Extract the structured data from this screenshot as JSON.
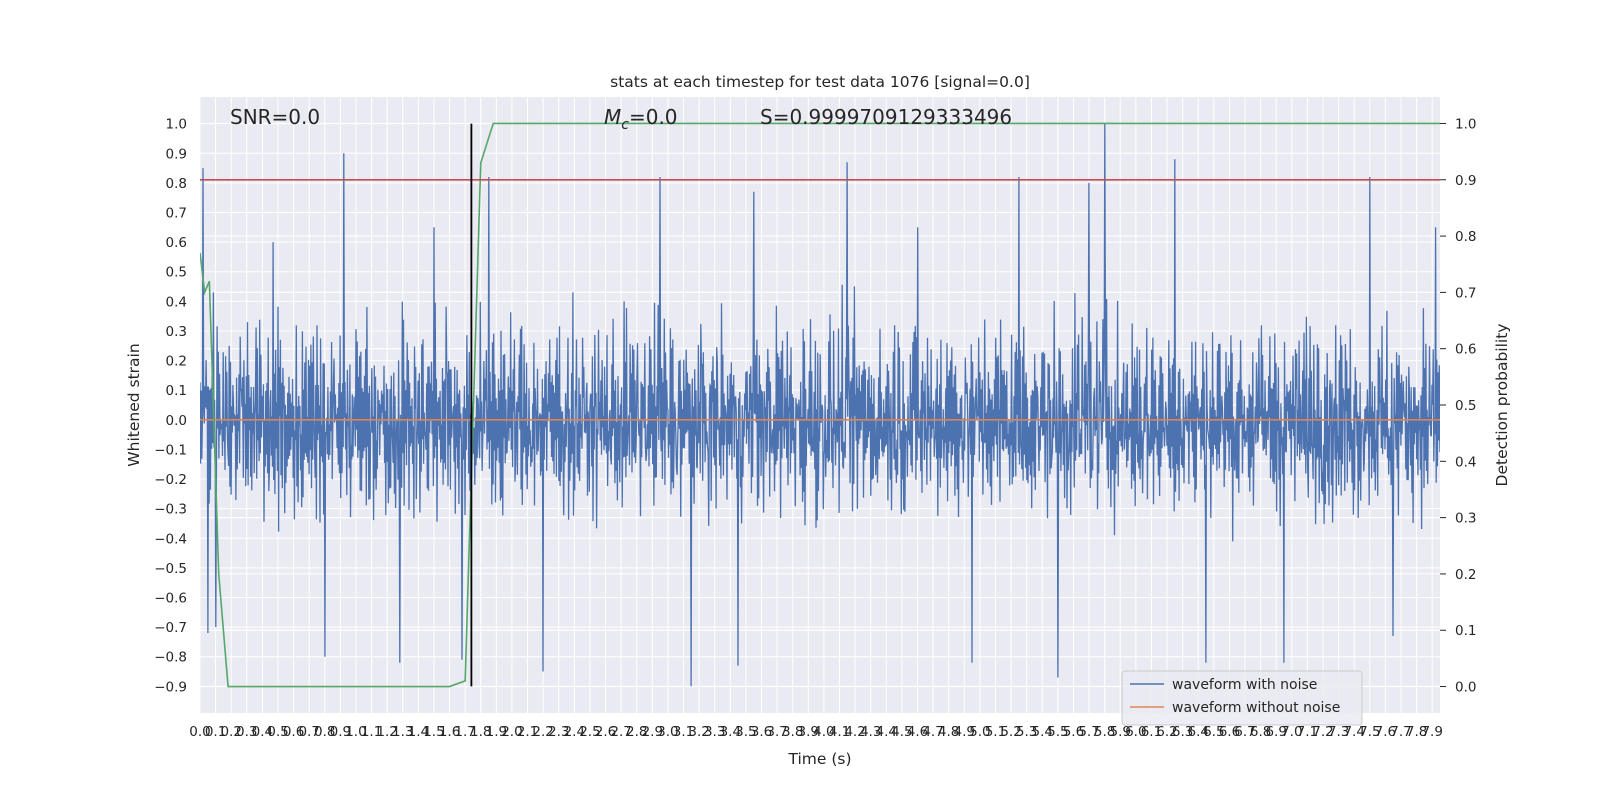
{
  "chart_data": {
    "type": "line",
    "title": "stats at each timestep for test data 1076 [signal=0.0]",
    "xlabel": "Time (s)",
    "ylabel": "Whitened strain",
    "y2label": "Detection probability",
    "xlim": [
      0.0,
      7.95
    ],
    "ylim": [
      -0.99,
      1.09
    ],
    "y2lim": [
      -0.047,
      1.047
    ],
    "x_ticks": [
      0.0,
      0.1,
      0.2,
      0.3,
      0.4,
      0.5,
      0.6,
      0.7,
      0.8,
      0.9,
      1.0,
      1.1,
      1.2,
      1.3,
      1.4,
      1.5,
      1.6,
      1.7,
      1.8,
      1.9,
      2.0,
      2.1,
      2.2,
      2.3,
      2.4,
      2.5,
      2.6,
      2.7,
      2.8,
      2.9,
      3.0,
      3.1,
      3.2,
      3.3,
      3.4,
      3.5,
      3.6,
      3.7,
      3.8,
      3.9,
      4.0,
      4.1,
      4.2,
      4.3,
      4.4,
      4.5,
      4.6,
      4.7,
      4.8,
      4.9,
      5.0,
      5.1,
      5.2,
      5.3,
      5.4,
      5.5,
      5.6,
      5.7,
      5.8,
      5.9,
      6.0,
      6.1,
      6.2,
      6.3,
      6.4,
      6.5,
      6.6,
      6.7,
      6.8,
      6.9,
      7.0,
      7.1,
      7.2,
      7.3,
      7.4,
      7.5,
      7.6,
      7.7,
      7.8,
      7.9
    ],
    "x_tick_labels": [
      "0.0",
      "0.1",
      "0.2",
      "0.3",
      "0.4",
      "0.5",
      "0.6",
      "0.7",
      "0.8",
      "0.9",
      "1.0",
      "1.1",
      "1.2",
      "1.3",
      "1.4",
      "1.5",
      "1.6",
      "1.7",
      "1.8",
      "1.9",
      "2.0",
      "2.1",
      "2.2",
      "2.3",
      "2.4",
      "2.5",
      "2.6",
      "2.7",
      "2.8",
      "2.9",
      "3.0",
      "3.1",
      "3.2",
      "3.3",
      "3.4",
      "3.5",
      "3.6",
      "3.7",
      "3.8",
      "3.9",
      "4.0",
      "4.1",
      "4.2",
      "4.3",
      "4.4",
      "4.5",
      "4.6",
      "4.7",
      "4.8",
      "4.9",
      "5.0",
      "5.1",
      "5.2",
      "5.3",
      "5.4",
      "5.5",
      "5.6",
      "5.7",
      "5.8",
      "5.9",
      "6.0",
      "6.1",
      "6.2",
      "6.3",
      "6.4",
      "6.5",
      "6.6",
      "6.7",
      "6.8",
      "6.9",
      "7.0",
      "7.1",
      "7.2",
      "7.3",
      "7.4",
      "7.5",
      "7.6",
      "7.7",
      "7.8",
      "7.9"
    ],
    "y_ticks": [
      -0.9,
      -0.8,
      -0.7,
      -0.6,
      -0.5,
      -0.4,
      -0.3,
      -0.2,
      -0.1,
      0.0,
      0.1,
      0.2,
      0.3,
      0.4,
      0.5,
      0.6,
      0.7,
      0.8,
      0.9,
      1.0
    ],
    "y_tick_labels": [
      "−0.9",
      "−0.8",
      "−0.7",
      "−0.6",
      "−0.5",
      "−0.4",
      "−0.3",
      "−0.2",
      "−0.1",
      "0.0",
      "0.1",
      "0.2",
      "0.3",
      "0.4",
      "0.5",
      "0.6",
      "0.7",
      "0.8",
      "0.9",
      "1.0"
    ],
    "y2_ticks": [
      0.0,
      0.1,
      0.2,
      0.3,
      0.4,
      0.5,
      0.6,
      0.7,
      0.8,
      0.9,
      1.0
    ],
    "y2_tick_labels": [
      "0.0",
      "0.1",
      "0.2",
      "0.3",
      "0.4",
      "0.5",
      "0.6",
      "0.7",
      "0.8",
      "0.9",
      "1.0"
    ],
    "grid": true,
    "legend_position": "bottom-right",
    "annotations": {
      "snr": "SNR=0.0",
      "mc_symbol": "M",
      "mc_subscript": "c",
      "mc_value": "=0.0",
      "s": "S=0.9999709129333496"
    },
    "colors": {
      "background": "#eaeaf2",
      "grid": "#ffffff",
      "waveform_with_noise": "#4c72b0",
      "waveform_without_noise": "#dd8452",
      "detection_probability": "#55a868",
      "threshold": "#c44e52",
      "marker": "#000000"
    },
    "series": [
      {
        "name": "waveform with noise",
        "axis": "left",
        "kind": "noise",
        "sample_rate_hz": 256,
        "duration_s": 7.95,
        "envelope": [
          0.45,
          0.38
        ],
        "peaks": [
          {
            "x": 0.02,
            "y": 0.85
          },
          {
            "x": 0.05,
            "y": -0.72
          },
          {
            "x": 0.1,
            "y": -0.7
          },
          {
            "x": 0.47,
            "y": 0.6
          },
          {
            "x": 0.8,
            "y": -0.8
          },
          {
            "x": 0.92,
            "y": 0.9
          },
          {
            "x": 1.28,
            "y": -0.82
          },
          {
            "x": 1.5,
            "y": 0.65
          },
          {
            "x": 1.68,
            "y": -0.81
          },
          {
            "x": 1.85,
            "y": 0.82
          },
          {
            "x": 2.2,
            "y": -0.85
          },
          {
            "x": 2.95,
            "y": 0.82
          },
          {
            "x": 3.15,
            "y": -0.9
          },
          {
            "x": 3.45,
            "y": -0.83
          },
          {
            "x": 3.55,
            "y": 0.77
          },
          {
            "x": 4.15,
            "y": 0.87
          },
          {
            "x": 4.6,
            "y": 0.65
          },
          {
            "x": 4.95,
            "y": -0.82
          },
          {
            "x": 5.25,
            "y": 0.82
          },
          {
            "x": 5.5,
            "y": -0.87
          },
          {
            "x": 5.7,
            "y": 0.8
          },
          {
            "x": 5.8,
            "y": 1.0
          },
          {
            "x": 6.25,
            "y": 0.88
          },
          {
            "x": 6.45,
            "y": -0.82
          },
          {
            "x": 6.95,
            "y": -0.82
          },
          {
            "x": 7.5,
            "y": 0.82
          },
          {
            "x": 7.65,
            "y": -0.73
          },
          {
            "x": 7.92,
            "y": 0.65
          }
        ]
      },
      {
        "name": "waveform without noise",
        "axis": "left",
        "x": [
          0.0,
          7.95
        ],
        "y": [
          0.0,
          0.0
        ]
      },
      {
        "axis": "right",
        "x": [
          0.0,
          0.03,
          0.06,
          0.12,
          0.18,
          1.6,
          1.7,
          1.8,
          1.88,
          7.95
        ],
        "y": [
          0.77,
          0.7,
          0.72,
          0.2,
          0.0,
          0.0,
          0.01,
          0.93,
          1.0,
          1.0
        ]
      },
      {
        "axis": "right",
        "kind": "hline",
        "y": 0.9
      },
      {
        "axis": "left",
        "kind": "vline",
        "x": 1.74,
        "y_range": [
          -0.9,
          1.0
        ]
      }
    ]
  }
}
